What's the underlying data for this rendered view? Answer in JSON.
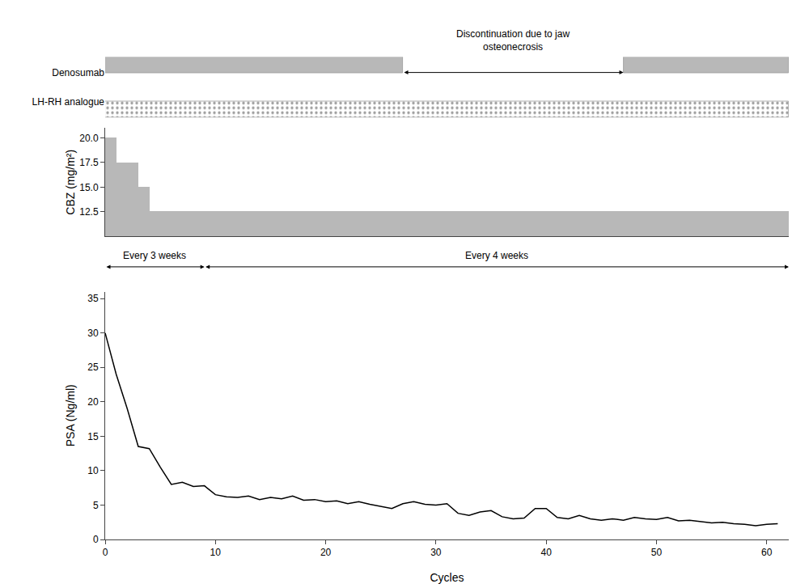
{
  "chart_data": [
    {
      "type": "timeline",
      "series": [
        {
          "name": "Denosumab",
          "color": "#b8b8b8",
          "intervals": [
            [
              0,
              27
            ],
            [
              47,
              62
            ]
          ]
        },
        {
          "name": "LH-RH analogue",
          "color": "#ffffff",
          "intervals": [
            [
              0,
              62
            ]
          ]
        }
      ],
      "annotations": [
        {
          "text": "Discontinuation due to jaw\nosteonecrosis",
          "from": 27,
          "to": 47
        }
      ],
      "xlim": [
        0,
        62
      ],
      "tick_labels": "y",
      "grid": false
    },
    {
      "type": "bar",
      "ylabel": "CBZ (mg/m²)",
      "values": [
        20.0,
        17.5,
        17.5,
        15.0,
        12.5,
        12.5,
        12.5,
        12.5,
        12.5,
        12.5,
        12.5,
        12.5,
        12.5,
        12.5,
        12.5,
        12.5,
        12.5,
        12.5,
        12.5,
        12.5,
        12.5,
        12.5,
        12.5,
        12.5,
        12.5,
        12.5,
        12.5,
        12.5,
        12.5,
        12.5,
        12.5,
        12.5,
        12.5,
        12.5,
        12.5,
        12.5,
        12.5,
        12.5,
        12.5,
        12.5,
        12.5,
        12.5,
        12.5,
        12.5,
        12.5,
        12.5,
        12.5,
        12.5,
        12.5,
        12.5,
        12.5,
        12.5,
        12.5,
        12.5,
        12.5,
        12.5,
        12.5,
        12.5,
        12.5,
        12.5,
        12.5,
        12.5
      ],
      "color": "#b8b8b8",
      "xlim": [
        0,
        62
      ],
      "ylim": [
        10,
        21
      ],
      "yticks": [
        12.5,
        {
          "value": 15,
          "label": "15.0"
        },
        17.5,
        {
          "value": 20,
          "label": "20.0"
        }
      ],
      "tick_labels": "y",
      "grid": false,
      "annotations": [
        {
          "text": "Every 3 weeks",
          "from": 0,
          "to": 9
        },
        {
          "text": "Every 4 weeks",
          "from": 9,
          "to": 62
        }
      ]
    },
    {
      "type": "line",
      "xlabel": "Cycles",
      "ylabel": "PSA (Ng/ml)",
      "x": [
        0,
        1,
        2,
        3,
        4,
        5,
        6,
        7,
        8,
        9,
        10,
        11,
        12,
        13,
        14,
        15,
        16,
        17,
        18,
        19,
        20,
        21,
        22,
        23,
        24,
        25,
        26,
        27,
        28,
        29,
        30,
        31,
        32,
        33,
        34,
        35,
        36,
        37,
        38,
        39,
        40,
        41,
        42,
        43,
        44,
        45,
        46,
        47,
        48,
        49,
        50,
        51,
        52,
        53,
        54,
        55,
        56,
        57,
        58,
        59,
        60,
        61
      ],
      "values": [
        30.0,
        24.0,
        19.0,
        13.5,
        13.2,
        10.5,
        8.0,
        8.3,
        7.7,
        7.8,
        6.5,
        6.2,
        6.1,
        6.3,
        5.8,
        6.1,
        5.9,
        6.3,
        5.7,
        5.8,
        5.5,
        5.6,
        5.2,
        5.5,
        5.1,
        4.8,
        4.5,
        5.2,
        5.5,
        5.1,
        5.0,
        5.2,
        3.8,
        3.5,
        4.0,
        4.2,
        3.3,
        3.0,
        3.1,
        4.5,
        4.5,
        3.2,
        3.0,
        3.5,
        3.0,
        2.8,
        3.0,
        2.8,
        3.2,
        3.0,
        2.9,
        3.2,
        2.7,
        2.8,
        2.6,
        2.4,
        2.5,
        2.3,
        2.2,
        2.0,
        2.2,
        2.3
      ],
      "color": "#000000",
      "xlim": [
        0,
        62
      ],
      "xticks": [
        0,
        10,
        20,
        30,
        40,
        50,
        60
      ],
      "ylim": [
        0,
        36
      ],
      "yticks": [
        0,
        5,
        10,
        15,
        20,
        25,
        30,
        35
      ],
      "grid": false
    }
  ]
}
